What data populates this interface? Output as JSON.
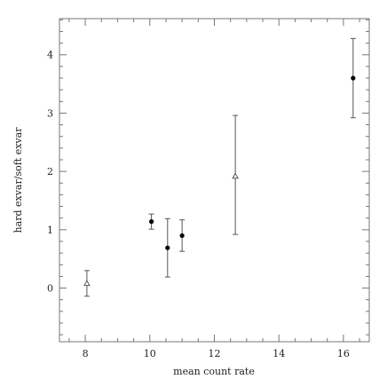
{
  "chart_data": {
    "type": "scatter",
    "title": "",
    "xlabel": "mean count rate",
    "ylabel": "hard exvar/soft exvar",
    "xlim": [
      7.2,
      16.8
    ],
    "ylim": [
      -0.92,
      4.62
    ],
    "xticks": [
      8,
      10,
      12,
      14,
      16
    ],
    "yticks": [
      0,
      1,
      2,
      3,
      4
    ],
    "grid": false,
    "legend": "none",
    "error_bars": "vertical",
    "series": [
      {
        "marker": "filled-circle",
        "color": "#000000",
        "points": [
          {
            "x": 10.05,
            "y": 1.14,
            "ylow": 1.01,
            "yhigh": 1.27
          },
          {
            "x": 10.55,
            "y": 0.69,
            "ylow": 0.19,
            "yhigh": 1.19
          },
          {
            "x": 11.0,
            "y": 0.9,
            "ylow": 0.63,
            "yhigh": 1.17
          },
          {
            "x": 16.3,
            "y": 3.6,
            "ylow": 2.92,
            "yhigh": 4.28
          }
        ]
      },
      {
        "marker": "open-triangle",
        "color": "#000000",
        "points": [
          {
            "x": 8.05,
            "y": 0.08,
            "ylow": -0.14,
            "yhigh": 0.3
          },
          {
            "x": 12.65,
            "y": 1.92,
            "ylow": 0.92,
            "yhigh": 2.96
          }
        ]
      }
    ]
  }
}
